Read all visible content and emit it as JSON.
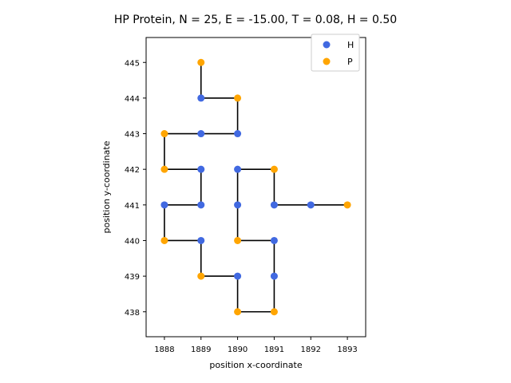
{
  "chart_data": {
    "type": "scatter",
    "title": "HP Protein, N = 25, E = -15.00, T = 0.08, H = 0.50",
    "xlabel": "position x-coordinate",
    "ylabel": "position y-coordinate",
    "xlim": [
      1887.5,
      1893.5
    ],
    "ylim": [
      437.3,
      445.7
    ],
    "xticks": [
      1888,
      1889,
      1890,
      1891,
      1892,
      1893
    ],
    "yticks": [
      438,
      439,
      440,
      441,
      442,
      443,
      444,
      445
    ],
    "legend": "upper right",
    "chain_color": "#000000",
    "series": [
      {
        "name": "H",
        "color": "#4169E1"
      },
      {
        "name": "P",
        "color": "#FFA500"
      }
    ],
    "chain": [
      {
        "x": 1889,
        "y": 445,
        "type": "P"
      },
      {
        "x": 1889,
        "y": 444,
        "type": "H"
      },
      {
        "x": 1890,
        "y": 444,
        "type": "P"
      },
      {
        "x": 1890,
        "y": 443,
        "type": "H"
      },
      {
        "x": 1889,
        "y": 443,
        "type": "H"
      },
      {
        "x": 1888,
        "y": 443,
        "type": "P"
      },
      {
        "x": 1888,
        "y": 442,
        "type": "P"
      },
      {
        "x": 1889,
        "y": 442,
        "type": "H"
      },
      {
        "x": 1889,
        "y": 441,
        "type": "H"
      },
      {
        "x": 1888,
        "y": 441,
        "type": "H"
      },
      {
        "x": 1888,
        "y": 440,
        "type": "P"
      },
      {
        "x": 1889,
        "y": 440,
        "type": "H"
      },
      {
        "x": 1889,
        "y": 439,
        "type": "P"
      },
      {
        "x": 1890,
        "y": 439,
        "type": "H"
      },
      {
        "x": 1890,
        "y": 438,
        "type": "P"
      },
      {
        "x": 1891,
        "y": 438,
        "type": "P"
      },
      {
        "x": 1891,
        "y": 439,
        "type": "H"
      },
      {
        "x": 1891,
        "y": 440,
        "type": "H"
      },
      {
        "x": 1890,
        "y": 440,
        "type": "P"
      },
      {
        "x": 1890,
        "y": 441,
        "type": "H"
      },
      {
        "x": 1890,
        "y": 442,
        "type": "H"
      },
      {
        "x": 1891,
        "y": 442,
        "type": "P"
      },
      {
        "x": 1891,
        "y": 441,
        "type": "H"
      },
      {
        "x": 1892,
        "y": 441,
        "type": "H"
      },
      {
        "x": 1893,
        "y": 441,
        "type": "P"
      }
    ]
  }
}
